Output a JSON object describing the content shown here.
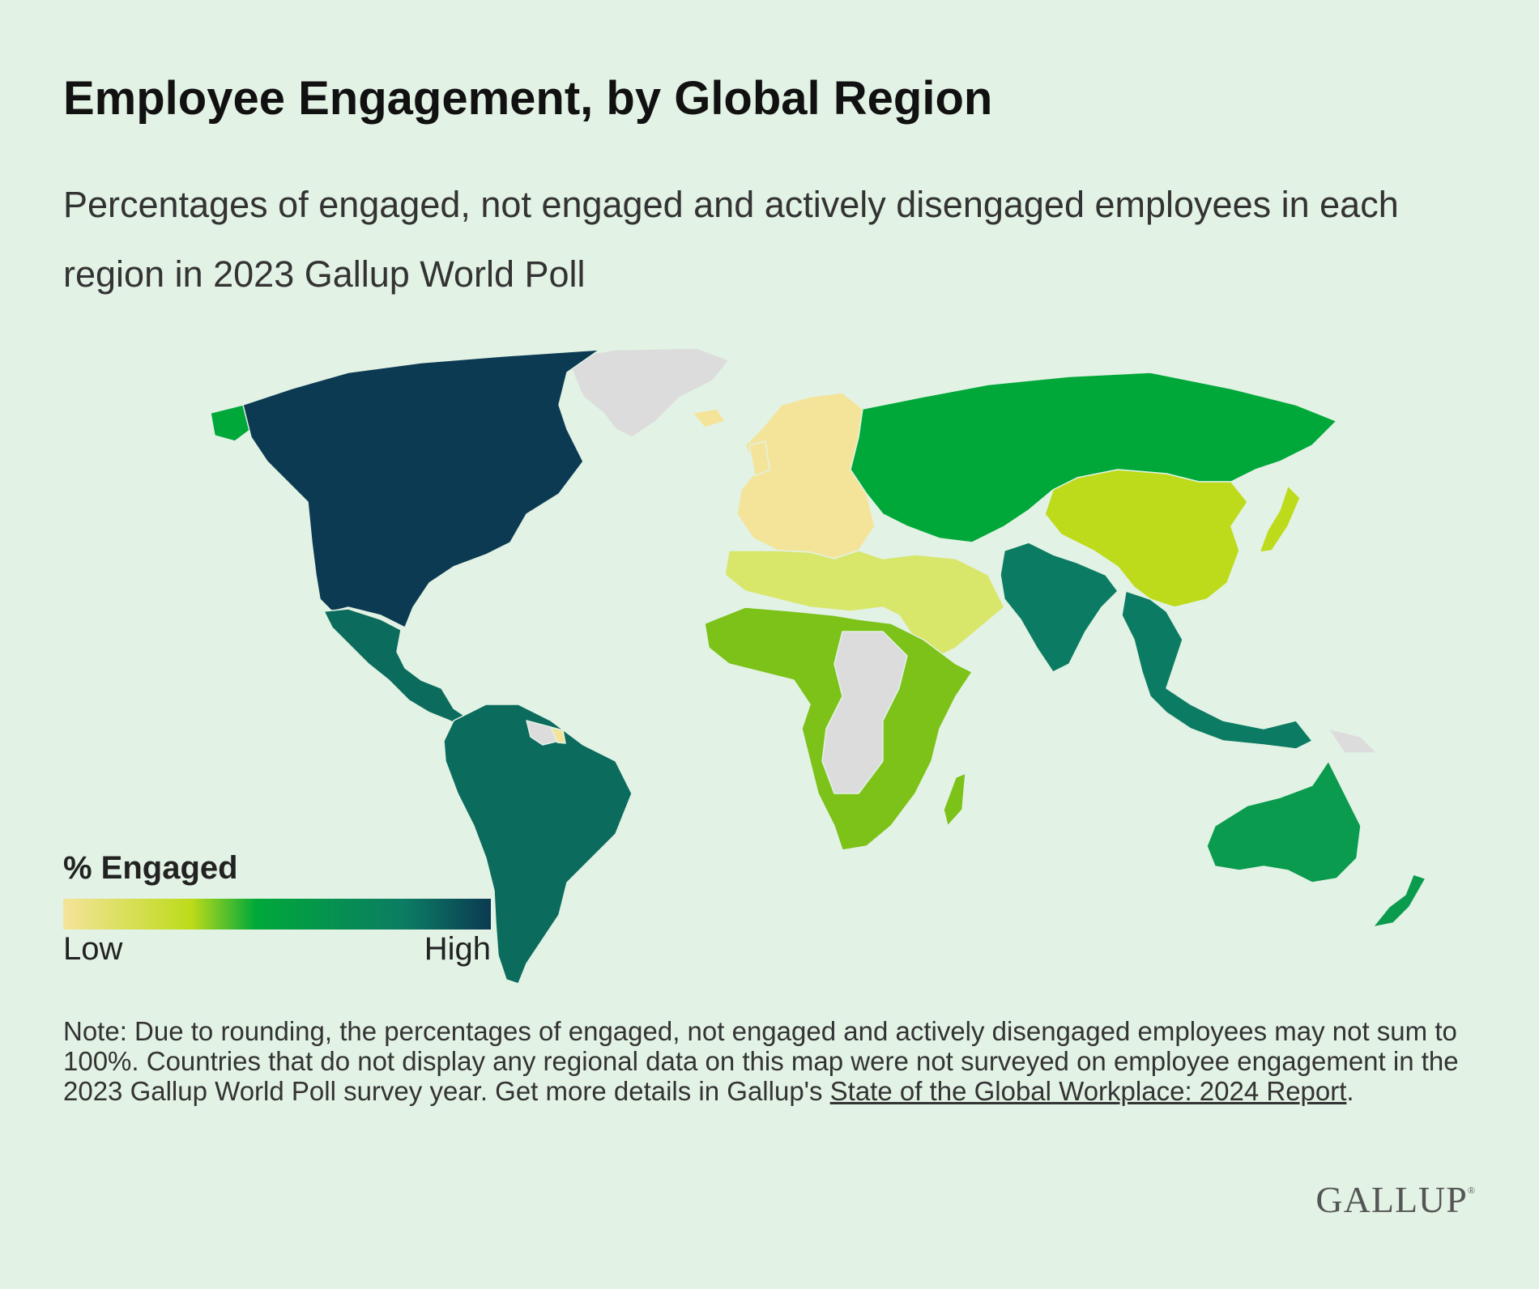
{
  "title": "Employee Engagement, by Global Region",
  "subtitle": "Percentages of engaged, not engaged and actively disengaged employees in each region in 2023 Gallup World Poll",
  "legend": {
    "title": "% Engaged",
    "low": "Low",
    "high": "High",
    "colors": [
      "#f4e49a",
      "#bddb1a",
      "#00a83a",
      "#0b7c63",
      "#0b3a52"
    ]
  },
  "note": {
    "text": "Note: Due to rounding, the percentages of engaged, not engaged and actively disengaged employees may not sum to 100%. Countries that do not display any regional data on this map were not surveyed on employee engagement in the 2023 Gallup World Poll survey year. Get more details in Gallup's ",
    "link": "State of the Global Workplace: 2024 Report",
    "end": "."
  },
  "logo": "GALLUP",
  "regions": [
    {
      "name": "United States and Canada",
      "color": "#0b3a52"
    },
    {
      "name": "Latin America and Caribbean",
      "color": "#0b6b5c"
    },
    {
      "name": "South Asia",
      "color": "#0b7c63"
    },
    {
      "name": "Southeast Asia",
      "color": "#0b7c63"
    },
    {
      "name": "Australia and New Zealand",
      "color": "#0a9b4e"
    },
    {
      "name": "Post-Soviet Eurasia",
      "color": "#00a83a"
    },
    {
      "name": "Sub-Saharan Africa",
      "color": "#7cc218"
    },
    {
      "name": "East Asia",
      "color": "#bddb1a"
    },
    {
      "name": "Middle East and North Africa",
      "color": "#d8e66a"
    },
    {
      "name": "Europe",
      "color": "#f4e49a"
    },
    {
      "name": "Not surveyed",
      "color": "#dcdcdc"
    }
  ]
}
